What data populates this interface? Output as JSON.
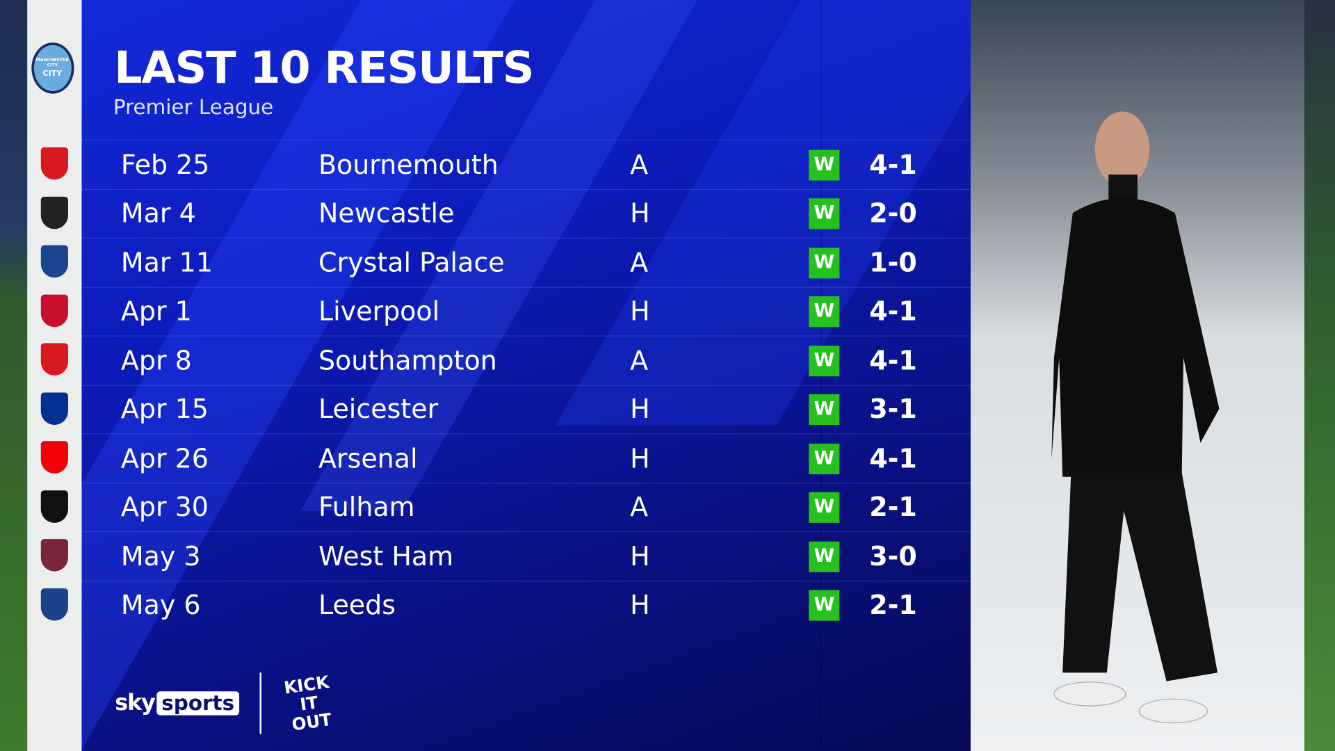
{
  "header": {
    "title": "LAST 10 RESULTS",
    "subtitle": "Premier League"
  },
  "team": {
    "name": "Manchester City",
    "crest_text": "CITY"
  },
  "results": [
    {
      "date": "Feb 25",
      "opponent": "Bournemouth",
      "venue": "A",
      "result": "W",
      "score": "4-1",
      "crest_color": "#d71920"
    },
    {
      "date": "Mar 4",
      "opponent": "Newcastle",
      "venue": "H",
      "result": "W",
      "score": "2-0",
      "crest_color": "#222222"
    },
    {
      "date": "Mar 11",
      "opponent": "Crystal Palace",
      "venue": "A",
      "result": "W",
      "score": "1-0",
      "crest_color": "#1b458f"
    },
    {
      "date": "Apr 1",
      "opponent": "Liverpool",
      "venue": "H",
      "result": "W",
      "score": "4-1",
      "crest_color": "#c8102e"
    },
    {
      "date": "Apr 8",
      "opponent": "Southampton",
      "venue": "A",
      "result": "W",
      "score": "4-1",
      "crest_color": "#d71920"
    },
    {
      "date": "Apr 15",
      "opponent": "Leicester",
      "venue": "H",
      "result": "W",
      "score": "3-1",
      "crest_color": "#003090"
    },
    {
      "date": "Apr 26",
      "opponent": "Arsenal",
      "venue": "H",
      "result": "W",
      "score": "4-1",
      "crest_color": "#ef0107"
    },
    {
      "date": "Apr 30",
      "opponent": "Fulham",
      "venue": "A",
      "result": "W",
      "score": "2-1",
      "crest_color": "#111111"
    },
    {
      "date": "May 3",
      "opponent": "West Ham",
      "venue": "H",
      "result": "W",
      "score": "3-0",
      "crest_color": "#7a263a"
    },
    {
      "date": "May 6",
      "opponent": "Leeds",
      "venue": "H",
      "result": "W",
      "score": "2-1",
      "crest_color": "#1d428a"
    }
  ],
  "colors": {
    "win": "#26c11f",
    "panel": "#0c1bb8"
  },
  "branding": {
    "sky": "sky",
    "sports": "sports",
    "kick_it_out": "KICK IT OUT"
  }
}
